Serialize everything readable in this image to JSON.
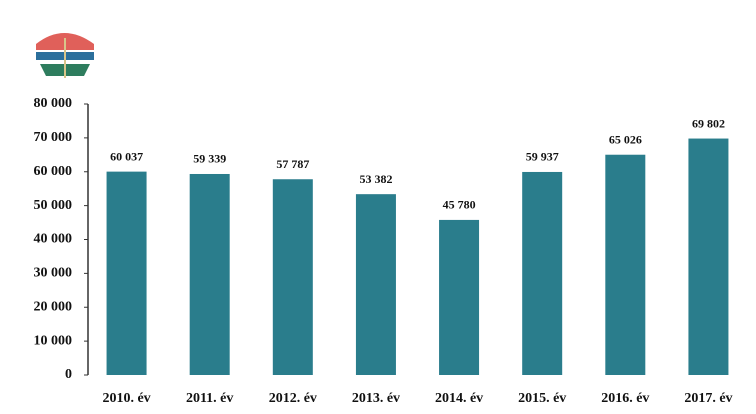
{
  "chart_data": {
    "type": "bar",
    "categories": [
      "2010. év",
      "2011. év",
      "2012. év",
      "2013. év",
      "2014. év",
      "2015. év",
      "2016. év",
      "2017. év"
    ],
    "values": [
      60037,
      59339,
      57787,
      53382,
      45780,
      59937,
      65026,
      69802
    ],
    "value_labels": [
      "60 037",
      "59 339",
      "57 787",
      "53 382",
      "45 780",
      "59 937",
      "65 026",
      "69 802"
    ],
    "color": "#2a7d8c",
    "ylim": [
      0,
      80000
    ],
    "yticks": [
      {
        "value": 0,
        "label": "0"
      },
      {
        "value": 10000,
        "label": "10 000"
      },
      {
        "value": 20000,
        "label": "20 000"
      },
      {
        "value": 30000,
        "label": "30 000"
      },
      {
        "value": 40000,
        "label": "40 000"
      },
      {
        "value": 50000,
        "label": "50 000"
      },
      {
        "value": 60000,
        "label": "60 000"
      },
      {
        "value": 70000,
        "label": "70 000"
      },
      {
        "value": 80000,
        "label": "80 000"
      }
    ],
    "grid": false
  }
}
